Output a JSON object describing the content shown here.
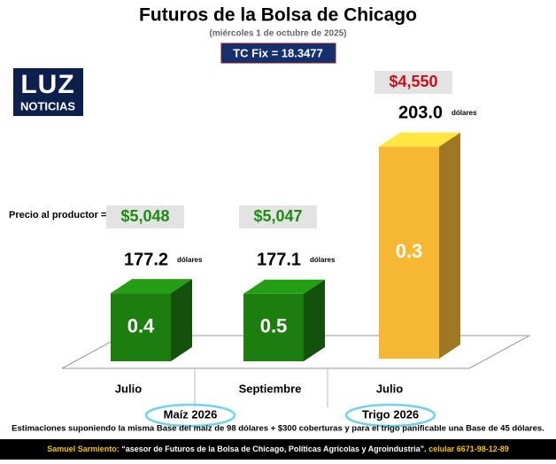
{
  "chart_data": {
    "type": "bar",
    "title": "Futuros de la Bolsa de Chicago",
    "subtitle": "(miércoles 1 de octubre de 2025)",
    "exchange_rate": "TC Fix = 18.3477",
    "logo": {
      "top": "LUZ",
      "bottom": "NOTICIAS"
    },
    "producer_price_label": "Precio al productor =",
    "categories": [
      "Julio",
      "Septiembre",
      "Julio"
    ],
    "values": [
      177.2,
      177.1,
      203.0
    ],
    "value_labels": [
      "177.2",
      "177.1",
      "203.0"
    ],
    "unit": "dólares",
    "changes": [
      "0.4",
      "0.5",
      "0.3"
    ],
    "peso_prices": [
      "$5,048",
      "$5,047",
      "$4,550"
    ],
    "peso_price_colors": [
      "#1f8a12",
      "#1f8a12",
      "#c8101a"
    ],
    "colors": [
      "#1d7e10",
      "#1d7e10",
      "#f6b833"
    ],
    "groups": [
      "Maíz 2026",
      "Trigo 2026"
    ],
    "footnote": "Estimaciones suponiendo la misma Base del maíz de 98 dólares + $300 coberturas y para el trigo panificable una Base de 45 dólares.",
    "credit": {
      "name": "Samuel Sarmiento:",
      "text": " “asesor de Futuros de la Bolsa de Chicago, Políticas Agrícolas y Agroindustria”. ",
      "phone": "celular 6671-98-12-89"
    }
  }
}
